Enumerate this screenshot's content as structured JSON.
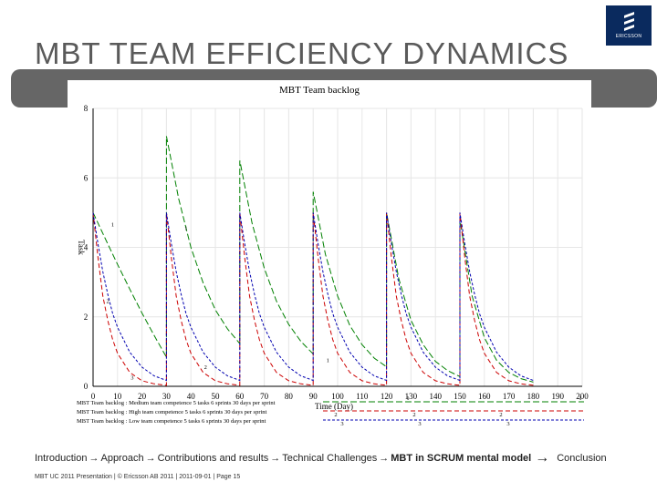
{
  "logo": {
    "text": "ERICSSON"
  },
  "slide_title": "MBT TEAM EFFICIENCY DYNAMICS",
  "nav": {
    "items": [
      "Introduction",
      "Approach",
      "Contributions and results",
      "Technical Challenges",
      "MBT in SCRUM mental model",
      "Conclusion"
    ],
    "arrow": "→",
    "current_index": 4
  },
  "footer": "MBT UC 2011 Presentation  |  © Ericsson AB 2011  |  2011-09-01  |  Page 15",
  "colors": {
    "logo_bg": "#0a2a5e",
    "banner": "#666666",
    "medium": "#008000",
    "high": "#cc0000",
    "low": "#0000b0"
  },
  "chart_data": {
    "type": "line",
    "title": "MBT Team backlog",
    "xlabel": "Time (Day)",
    "ylabel": "Task",
    "xlim": [
      0,
      200
    ],
    "ylim": [
      0,
      8
    ],
    "x_ticks": [
      0,
      10,
      20,
      30,
      40,
      50,
      60,
      70,
      80,
      90,
      100,
      110,
      120,
      130,
      140,
      150,
      160,
      170,
      180,
      190,
      200
    ],
    "y_ticks": [
      0,
      2,
      4,
      6,
      8
    ],
    "grid": true,
    "legend_position": "bottom",
    "series": [
      {
        "name": "MBT Team backlog : Medium team competence 5 tasks 6 sprints 30 days per sprint",
        "line_number": "1",
        "color": "#008000",
        "dash": "long",
        "x": [
          0,
          5,
          10,
          15,
          20,
          25,
          30,
          30,
          35,
          40,
          45,
          50,
          55,
          60,
          60,
          65,
          70,
          75,
          80,
          85,
          90,
          90,
          95,
          100,
          105,
          110,
          115,
          120,
          120,
          125,
          130,
          135,
          140,
          145,
          150,
          150,
          155,
          160,
          165,
          170,
          175,
          180
        ],
        "y": [
          5,
          4.25,
          3.51,
          2.8,
          2.11,
          1.46,
          0.84,
          7.2,
          5.4,
          4.0,
          2.98,
          2.2,
          1.65,
          1.23,
          6.5,
          4.7,
          3.4,
          2.45,
          1.78,
          1.29,
          0.93,
          5.6,
          3.8,
          2.6,
          1.75,
          1.2,
          0.81,
          0.56,
          5.0,
          3.1,
          1.9,
          1.2,
          0.72,
          0.45,
          0.28,
          4.8,
          2.6,
          1.4,
          0.75,
          0.4,
          0.22,
          0.12
        ]
      },
      {
        "name": "MBT Team backlog : High team competence 5 tasks 6 sprints 30 days per sprint",
        "line_number": "2",
        "color": "#cc0000",
        "dash": "medium",
        "x": [
          0,
          2,
          4,
          6,
          8,
          10,
          15,
          20,
          25,
          30,
          30,
          32,
          34,
          36,
          38,
          40,
          45,
          50,
          55,
          60,
          60,
          62,
          64,
          66,
          68,
          70,
          75,
          80,
          85,
          90,
          90,
          92,
          94,
          96,
          98,
          100,
          105,
          110,
          115,
          120,
          120,
          122,
          124,
          126,
          128,
          130,
          135,
          140,
          145,
          150,
          150,
          152,
          154,
          156,
          158,
          160,
          165,
          170,
          175,
          180
        ],
        "y": [
          5,
          3.7,
          2.6,
          1.9,
          1.35,
          0.95,
          0.4,
          0.16,
          0.07,
          0.03,
          5,
          3.7,
          2.6,
          1.9,
          1.35,
          0.95,
          0.4,
          0.16,
          0.07,
          0.03,
          5,
          3.7,
          2.6,
          1.9,
          1.35,
          0.95,
          0.4,
          0.16,
          0.07,
          0.03,
          5,
          3.7,
          2.6,
          1.9,
          1.35,
          0.95,
          0.4,
          0.16,
          0.07,
          0.03,
          5,
          3.7,
          2.6,
          1.9,
          1.35,
          0.95,
          0.4,
          0.16,
          0.07,
          0.03,
          5,
          3.7,
          2.6,
          1.9,
          1.35,
          0.95,
          0.4,
          0.16,
          0.07,
          0.03
        ]
      },
      {
        "name": "MBT Team backlog : Low team competence 5 tasks 6 sprints 30 days per sprint",
        "line_number": "3",
        "color": "#0000b0",
        "dash": "short",
        "x": [
          0,
          2,
          4,
          6,
          8,
          10,
          15,
          20,
          25,
          30,
          30,
          32,
          34,
          36,
          38,
          40,
          45,
          50,
          55,
          60,
          60,
          62,
          64,
          66,
          68,
          70,
          75,
          80,
          85,
          90,
          90,
          92,
          94,
          96,
          98,
          100,
          105,
          110,
          115,
          120,
          120,
          122,
          124,
          126,
          128,
          130,
          135,
          140,
          145,
          150,
          150,
          152,
          154,
          156,
          158,
          160,
          165,
          170,
          175,
          180
        ],
        "y": [
          5,
          4.1,
          3.3,
          2.65,
          2.1,
          1.7,
          0.98,
          0.55,
          0.3,
          0.17,
          5,
          4.1,
          3.3,
          2.65,
          2.1,
          1.7,
          0.98,
          0.55,
          0.3,
          0.17,
          5,
          4.1,
          3.3,
          2.65,
          2.1,
          1.7,
          0.98,
          0.55,
          0.3,
          0.17,
          5,
          4.1,
          3.3,
          2.65,
          2.1,
          1.7,
          0.98,
          0.55,
          0.3,
          0.17,
          5,
          4.1,
          3.3,
          2.65,
          2.1,
          1.7,
          0.98,
          0.55,
          0.3,
          0.17,
          5,
          4.1,
          3.3,
          2.65,
          2.1,
          1.7,
          0.98,
          0.55,
          0.3,
          0.17
        ]
      }
    ],
    "line_number_markers": [
      {
        "label": "1",
        "x": 8,
        "y": 4.6
      },
      {
        "label": "1",
        "x": 38,
        "y": 4.5
      },
      {
        "label": "1",
        "x": 96,
        "y": 0.7
      },
      {
        "label": "2",
        "x": 6,
        "y": 2.4
      },
      {
        "label": "2",
        "x": 46,
        "y": 0.5
      },
      {
        "label": "3",
        "x": 16,
        "y": 0.2
      }
    ]
  }
}
